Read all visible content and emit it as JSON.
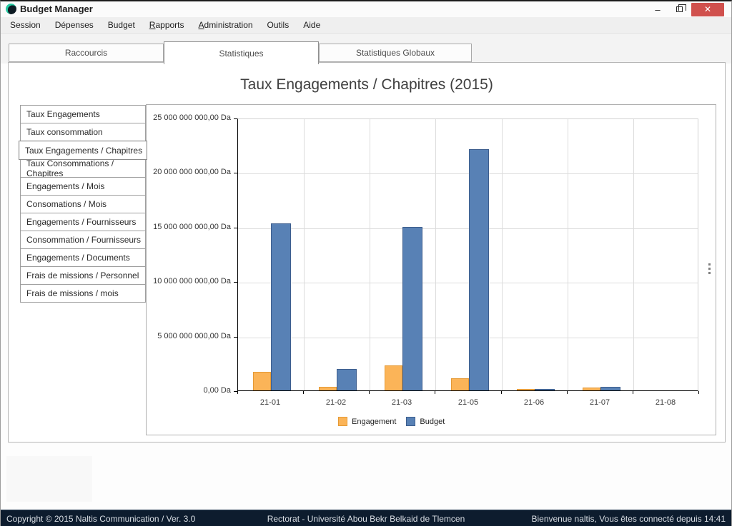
{
  "window": {
    "title": "Budget Manager",
    "controls": {
      "minimize": "–",
      "restore": "restore",
      "close": "✕"
    }
  },
  "menu": {
    "items": [
      {
        "label": "Session",
        "accel": null
      },
      {
        "label": "Dépenses",
        "accel": null
      },
      {
        "label": "Budget",
        "accel": null
      },
      {
        "label": "Rapports",
        "accel": 0
      },
      {
        "label": "Administration",
        "accel": 0
      },
      {
        "label": "Outils",
        "accel": null
      },
      {
        "label": "Aide",
        "accel": null
      }
    ]
  },
  "tabs": [
    {
      "label": "Raccourcis",
      "active": false
    },
    {
      "label": "Statistiques",
      "active": true
    },
    {
      "label": "Statistiques Globaux",
      "active": false
    }
  ],
  "main": {
    "heading": "Taux Engagements / Chapitres (2015)"
  },
  "sidebar": {
    "selected_index": 2,
    "items": [
      "Taux Engagements",
      "Taux consommation",
      "Taux Engagements / Chapitres",
      "Taux Consommations / Chapitres",
      "Engagements / Mois",
      "Consomations / Mois",
      "Engagements / Fournisseurs",
      "Consommation / Fournisseurs",
      "Engagements / Documents",
      "Frais de missions / Personnel",
      "Frais de missions / mois"
    ]
  },
  "chart_data": {
    "type": "bar",
    "title": "Taux Engagements / Chapitres (2015)",
    "categories": [
      "21-01",
      "21-02",
      "21-03",
      "21-05",
      "21-06",
      "21-07",
      "21-08"
    ],
    "series": [
      {
        "name": "Engagement",
        "color": "#fbb458",
        "border": "#e59a35",
        "values": [
          1700000000,
          330000000,
          2300000000,
          1100000000,
          100000000,
          250000000,
          0
        ]
      },
      {
        "name": "Budget",
        "color": "#5881b5",
        "border": "#3d5e8e",
        "values": [
          15300000000,
          1960000000,
          15000000000,
          22150000000,
          130000000,
          320000000,
          0
        ]
      }
    ],
    "unit": "Da",
    "ylim": [
      0,
      25000000000
    ],
    "ytick_step": 5000000000,
    "ytick_labels": [
      "0,00 Da",
      "5 000 000 000,00 Da",
      "10 000 000 000,00 Da",
      "15 000 000 000,00 Da",
      "20 000 000 000,00 Da",
      "25 000 000 000,00 Da"
    ],
    "grid": true,
    "legend_position": "bottom"
  },
  "statusbar": {
    "left": "Copyright © 2015 Naltis Communication / Ver. 3.0",
    "center": "Rectorat - Université Abou Bekr Belkaid de Tlemcen",
    "right": "Bienvenue naltis, Vous êtes connecté depuis 14:41"
  },
  "colors": {
    "close_button": "#d0504d",
    "statusbar_bg": "#0d1c2e",
    "app_icon_teal": "#25c8a0"
  }
}
